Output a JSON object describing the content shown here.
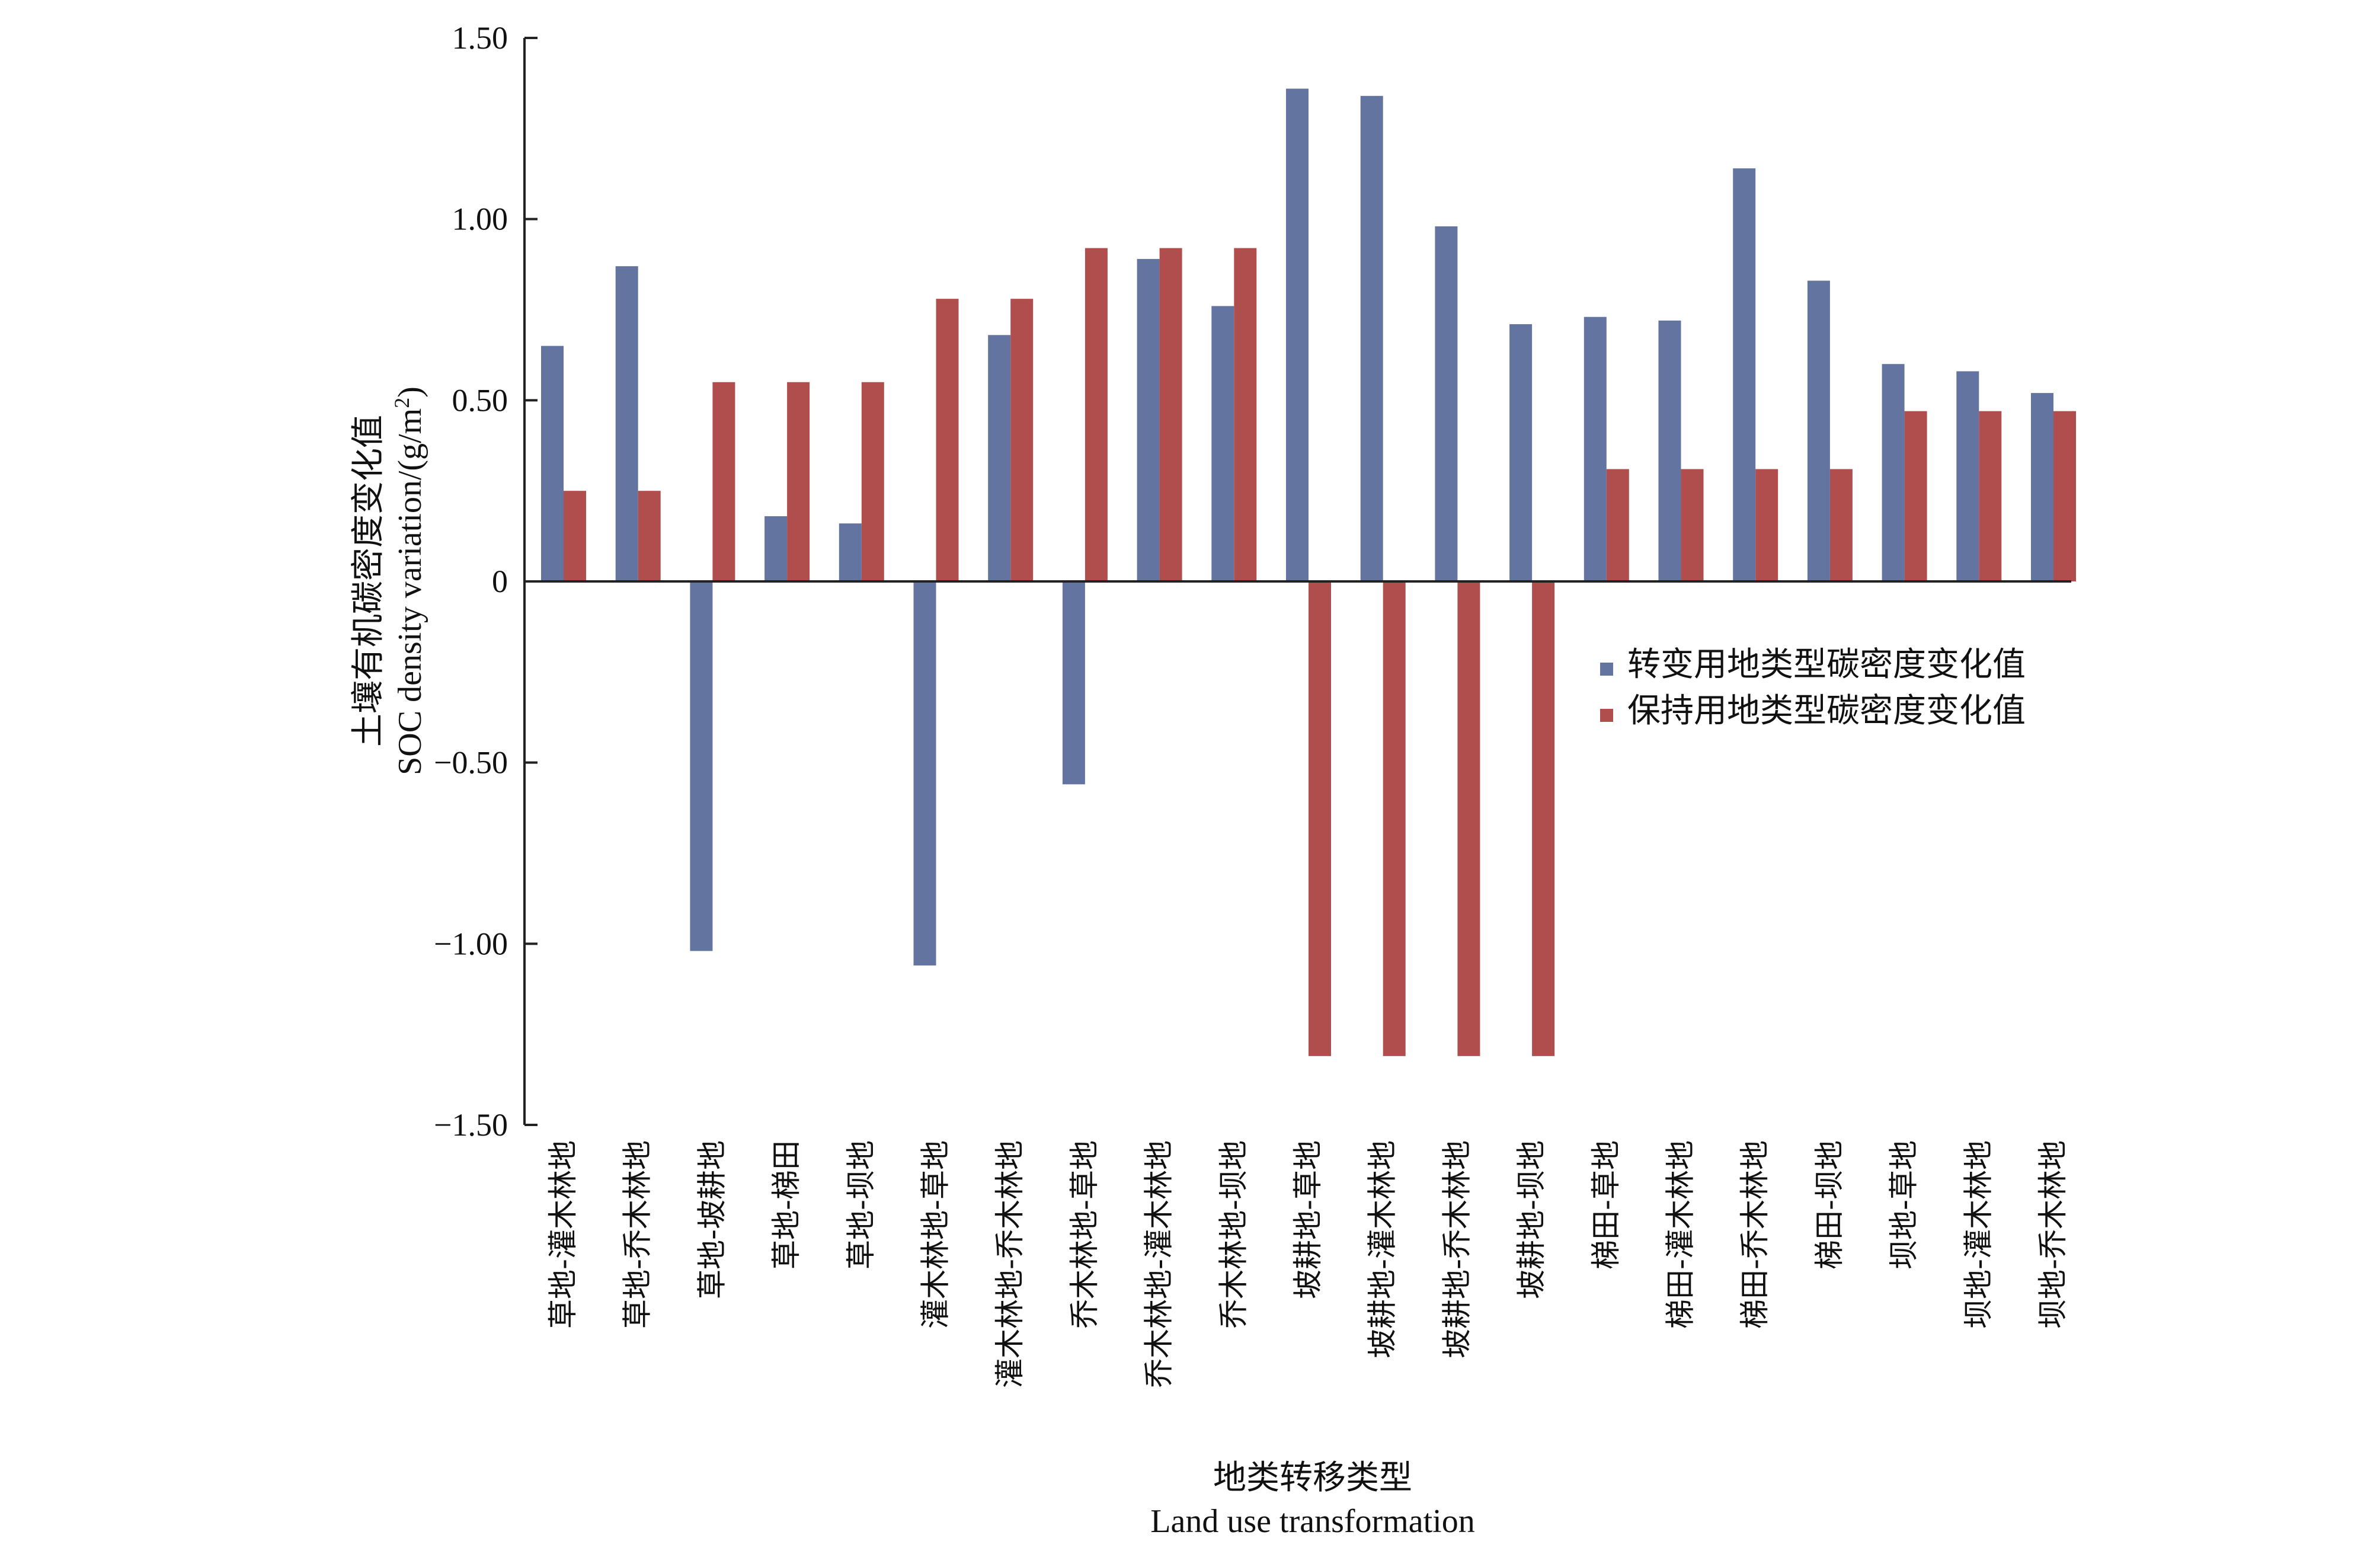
{
  "chart_data": {
    "type": "bar",
    "categories": [
      "草地-灌木林地",
      "草地-乔木林地",
      "草地-坡耕地",
      "草地-梯田",
      "草地-坝地",
      "灌木林地-草地",
      "灌木林地-乔木林地",
      "乔木林地-草地",
      "乔木林地-灌木林地",
      "乔木林地-坝地",
      "坡耕地-草地",
      "坡耕地-灌木林地",
      "坡耕地-乔木林地",
      "坡耕地-坝地",
      "梯田-草地",
      "梯田-灌木林地",
      "梯田-乔木林地",
      "梯田-坝地",
      "坝地-草地",
      "坝地-灌木林地",
      "坝地-乔木林地"
    ],
    "series": [
      {
        "name": "转变用地类型碳密度变化值",
        "color": "#6474a0",
        "values": [
          0.65,
          0.87,
          -1.02,
          0.18,
          0.16,
          -1.06,
          0.68,
          -0.56,
          0.89,
          0.76,
          1.36,
          1.34,
          0.98,
          0.71,
          0.73,
          0.72,
          1.14,
          0.83,
          0.6,
          0.58,
          0.52
        ]
      },
      {
        "name": "保持用地类型碳密度变化值",
        "color": "#b04e4e",
        "values": [
          0.25,
          0.25,
          0.55,
          0.55,
          0.55,
          0.78,
          0.78,
          0.92,
          0.92,
          0.92,
          -1.31,
          -1.31,
          -1.31,
          -1.31,
          0.31,
          0.31,
          0.31,
          0.31,
          0.47,
          0.47,
          0.47
        ]
      }
    ],
    "ylim": [
      -1.5,
      1.5
    ],
    "yticks": [
      {
        "value": -1.5,
        "label": "−1.50"
      },
      {
        "value": -1.0,
        "label": "−1.00"
      },
      {
        "value": -0.5,
        "label": "−0.50"
      },
      {
        "value": 0,
        "label": "0"
      },
      {
        "value": 0.5,
        "label": "0.50"
      },
      {
        "value": 1.0,
        "label": "1.00"
      },
      {
        "value": 1.5,
        "label": "1.50"
      }
    ],
    "ylabel_cn": "土壤有机碳密度变化值",
    "ylabel_en_prefix": "SOC density variation/(g/m",
    "ylabel_en_sup": "2",
    "ylabel_en_suffix": ")",
    "xlabel_cn": "地类转移类型",
    "xlabel_en": "Land use transformation",
    "grid": false,
    "legend_position": "right"
  }
}
